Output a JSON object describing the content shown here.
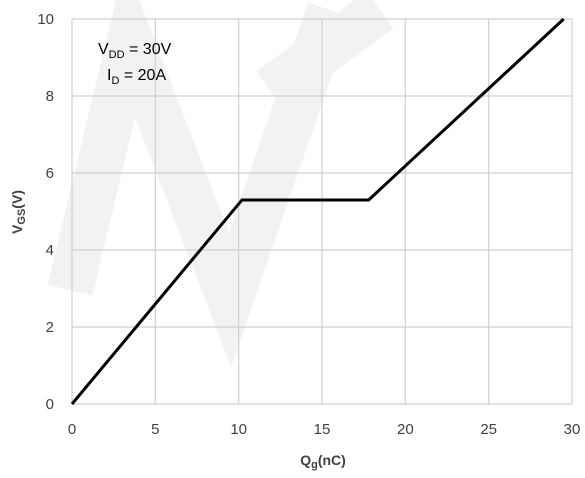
{
  "chart_data": {
    "type": "line",
    "title": "",
    "xlabel": {
      "main": "Q",
      "sub": "g",
      "rest": "(nC)"
    },
    "ylabel": {
      "main": "V",
      "sub": "GS",
      "rest": "(V)"
    },
    "xlim": [
      0,
      30
    ],
    "ylim": [
      0,
      10
    ],
    "xticks": [
      0,
      5,
      10,
      15,
      20,
      25,
      30
    ],
    "yticks": [
      0,
      2,
      4,
      6,
      8,
      10
    ],
    "grid": true,
    "legend": "none",
    "series": [
      {
        "x": [
          0,
          10.2,
          17.8,
          29.5
        ],
        "y": [
          0,
          5.3,
          5.3,
          10
        ],
        "color": "#000000"
      }
    ],
    "annotations": [
      {
        "main": "V",
        "sub": "DD",
        "rest": " = 30V"
      },
      {
        "main": "I",
        "sub": "D",
        "rest": " = 20A"
      }
    ]
  },
  "colors": {
    "grid": "#d0d0d0",
    "line": "#000000",
    "tick_text": "#404040",
    "watermark": "#f2f2f2"
  }
}
